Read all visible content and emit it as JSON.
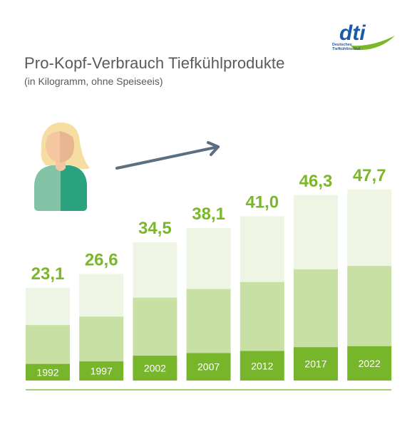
{
  "header": {
    "title": "Pro-Kopf-Verbrauch Tiefkühlprodukte",
    "subtitle": "(in Kilogramm, ohne Speiseeis)"
  },
  "logo": {
    "wordmark": "dti",
    "line1": "Deutsches",
    "line2": "Tiefkühlinstitut"
  },
  "colors": {
    "text": "#5a5a5a",
    "value_label": "#7ab82a",
    "bar_dark": "#77b62a",
    "bar_mid": "#c8e0a4",
    "bar_light": "#eef5e4",
    "arrow": "#5c6f80",
    "baseline": "#8cc043",
    "logo_blue": "#1a5aa8",
    "logo_green": "#7ab82a"
  },
  "chart_data": {
    "type": "bar",
    "title": "Pro-Kopf-Verbrauch Tiefkühlprodukte",
    "subtitle": "(in Kilogramm, ohne Speiseeis)",
    "categories": [
      "1992",
      "1997",
      "2002",
      "2007",
      "2012",
      "2017",
      "2022"
    ],
    "values": [
      23.1,
      26.6,
      34.5,
      38.1,
      41.0,
      46.3,
      47.7
    ],
    "value_labels": [
      "23,1",
      "26,6",
      "34,5",
      "38,1",
      "41,0",
      "46,3",
      "47,7"
    ],
    "ylim": [
      0,
      50
    ],
    "grid": false,
    "xlabel": "",
    "ylabel": ""
  }
}
